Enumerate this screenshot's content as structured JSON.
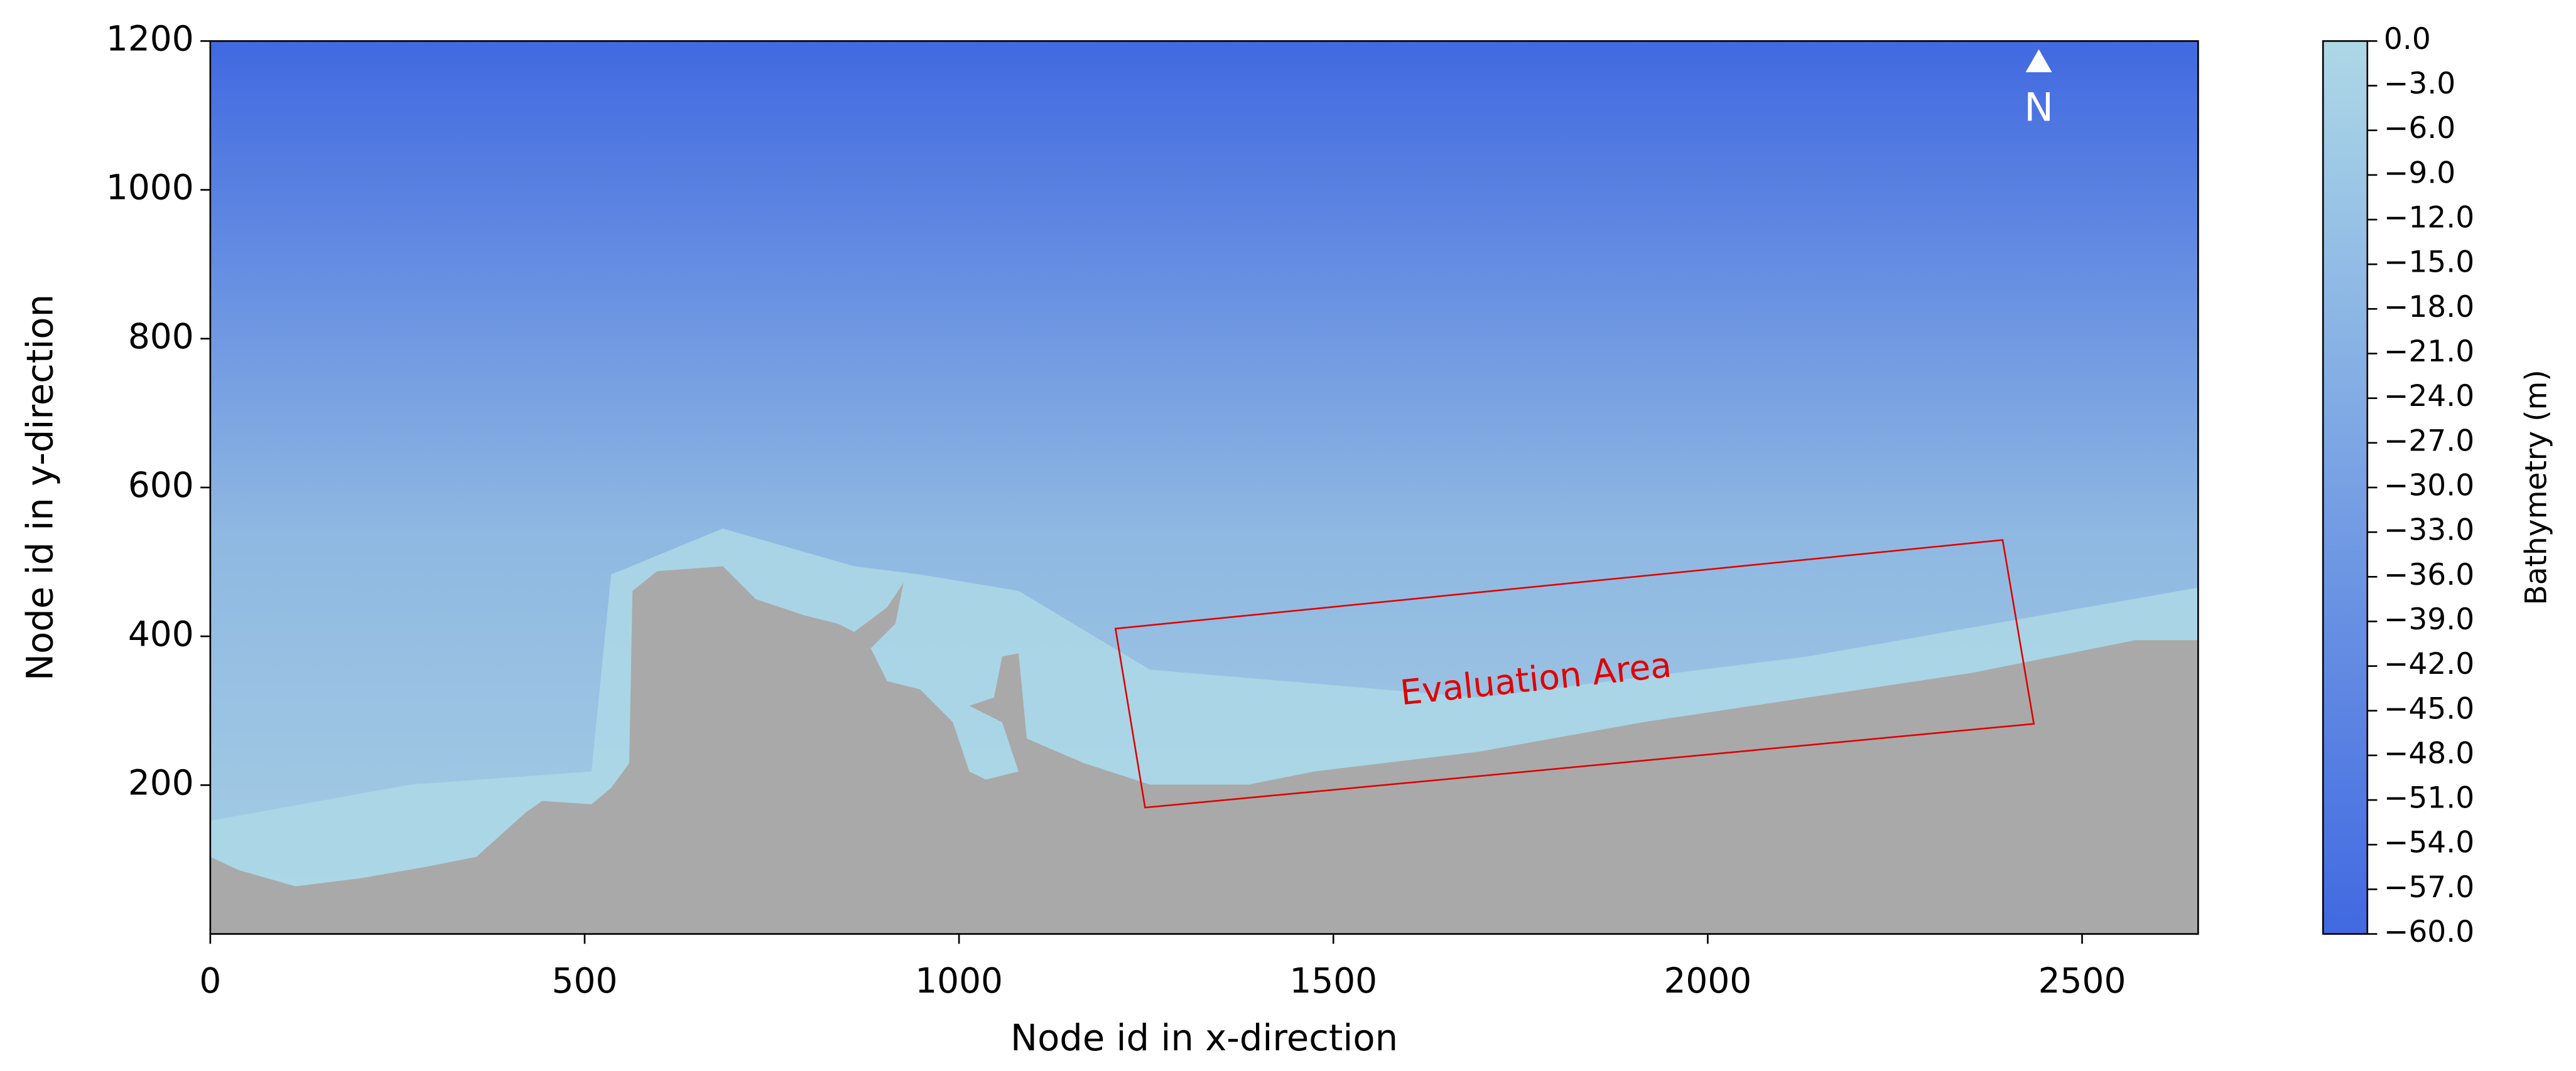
{
  "chart_data": {
    "type": "contour",
    "xlabel": "Node id in x-direction",
    "ylabel": "Node id in y-direction",
    "xlim": [
      0,
      2655
    ],
    "ylim": [
      0,
      1200
    ],
    "xticks": [
      0,
      500,
      1000,
      1500,
      2000,
      2500
    ],
    "yticks": [
      200,
      400,
      600,
      800,
      1000,
      1200
    ],
    "annotations": [
      "Evaluation Area",
      "N"
    ],
    "colorbar": {
      "label": "Bathymetry (m)",
      "lim": [
        -60,
        0
      ],
      "colors": [
        "#4169e1",
        "#add8e6"
      ],
      "ticks": [
        {
          "value": 0,
          "label": "0.0"
        },
        {
          "value": -3,
          "label": "−3.0"
        },
        {
          "value": -6,
          "label": "−6.0"
        },
        {
          "value": -9,
          "label": "−9.0"
        },
        {
          "value": -12,
          "label": "−12.0"
        },
        {
          "value": -15,
          "label": "−15.0"
        },
        {
          "value": -18,
          "label": "−18.0"
        },
        {
          "value": -21,
          "label": "−21.0"
        },
        {
          "value": -24,
          "label": "−24.0"
        },
        {
          "value": -27,
          "label": "−27.0"
        },
        {
          "value": -30,
          "label": "−30.0"
        },
        {
          "value": -33,
          "label": "−33.0"
        },
        {
          "value": -36,
          "label": "−36.0"
        },
        {
          "value": -39,
          "label": "−39.0"
        },
        {
          "value": -42,
          "label": "−42.0"
        },
        {
          "value": -45,
          "label": "−45.0"
        },
        {
          "value": -48,
          "label": "−48.0"
        },
        {
          "value": -51,
          "label": "−51.0"
        },
        {
          "value": -54,
          "label": "−54.0"
        },
        {
          "value": -57,
          "label": "−57.0"
        },
        {
          "value": -60,
          "label": "−60.0"
        }
      ]
    }
  }
}
